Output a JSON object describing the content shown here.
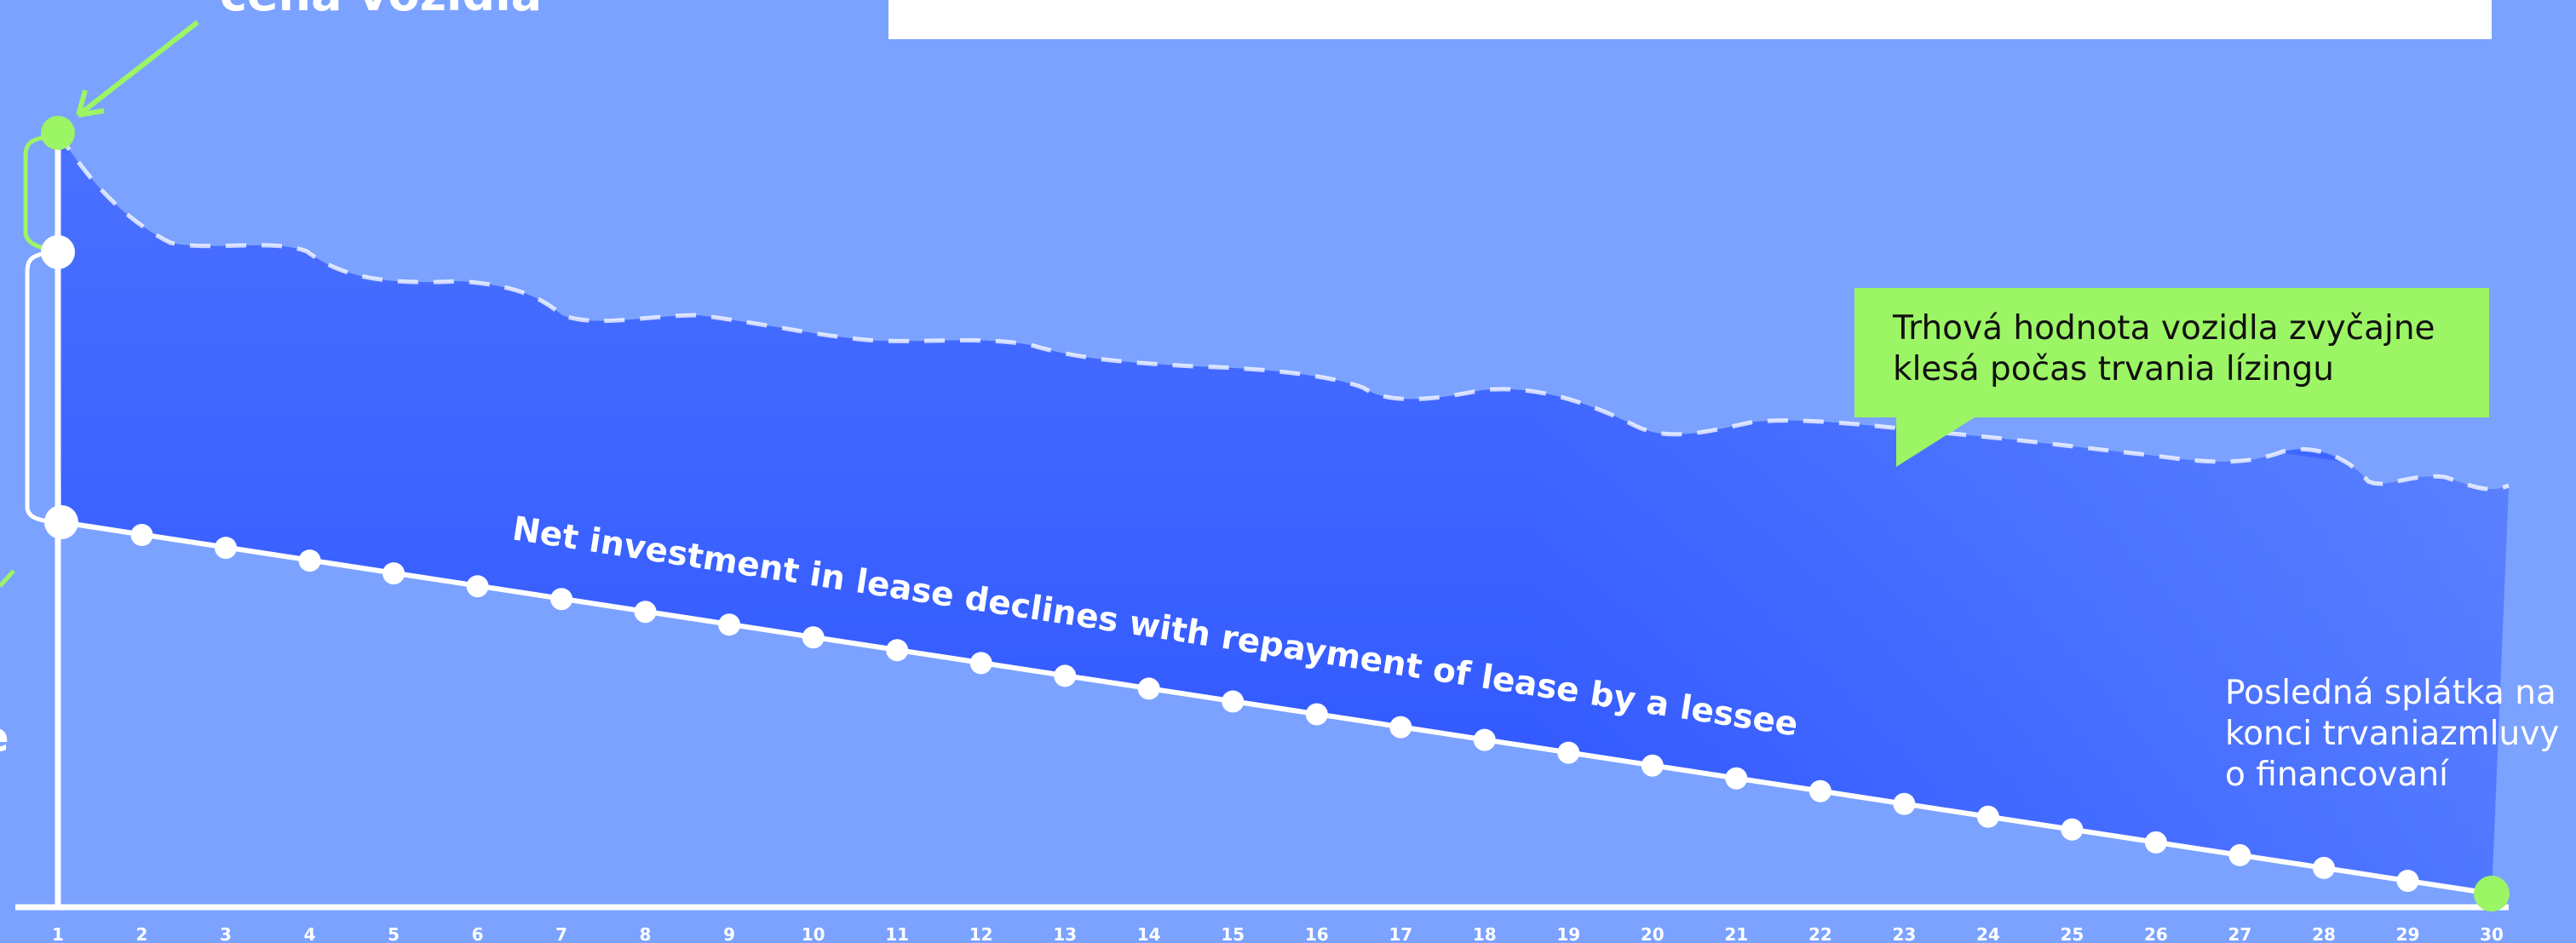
{
  "chart_data": {
    "type": "area",
    "x": [
      1,
      2,
      3,
      4,
      5,
      6,
      7,
      8,
      9,
      10,
      11,
      12,
      13,
      14,
      15,
      16,
      17,
      18,
      19,
      20,
      21,
      22,
      23,
      24,
      25,
      26,
      27,
      28,
      29,
      30
    ],
    "xlim": [
      1,
      30
    ],
    "grid": false,
    "labels": {
      "top": "cena vozidla",
      "callout": "Trhová hodnota vozidla zvyčajne klesá počas trvania lízingu",
      "diagonal": "Net investment in lease declines with repayment of lease by a lessee",
      "side_lines": [
        "Posledná splátka na",
        "konci trvaniazmluvy",
        "o financovaní"
      ],
      "left_fragment": "e"
    },
    "colors": {
      "background": "#7ba2ff",
      "area_top": "#3f66ff",
      "accent_green": "#9cf564",
      "white": "#ffffff"
    }
  }
}
